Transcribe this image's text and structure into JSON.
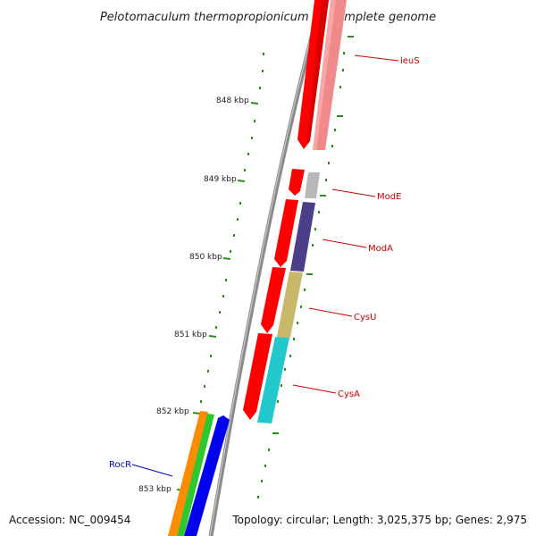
{
  "title": "Pelotomaculum thermopropionicum SI, complete genome",
  "accession": "Accession: NC_009454",
  "topology": "Topology: circular; Length: 3,025,375 bp; Genes: 2,975",
  "colors": {
    "backbone": "#8a8a8a",
    "tick": "#2e8b1e",
    "forward_gene": "#ff0000",
    "label_red": "#cc0000",
    "label_blue": "#0000cc"
  },
  "ticks": [
    "848 kbp",
    "849 kbp",
    "850 kbp",
    "851 kbp",
    "852 kbp",
    "853 kbp"
  ],
  "genes": [
    {
      "label": "leuS",
      "color": "#f08a8a"
    },
    {
      "label": "ModE",
      "color": "#b8b8b8"
    },
    {
      "label": "ModA",
      "color": "#4b3f8a"
    },
    {
      "label": "CysU",
      "color": "#c8b96a"
    },
    {
      "label": "CysA",
      "color": "#22c8cc"
    },
    {
      "label": "RocR",
      "color": "#0000ee"
    }
  ]
}
